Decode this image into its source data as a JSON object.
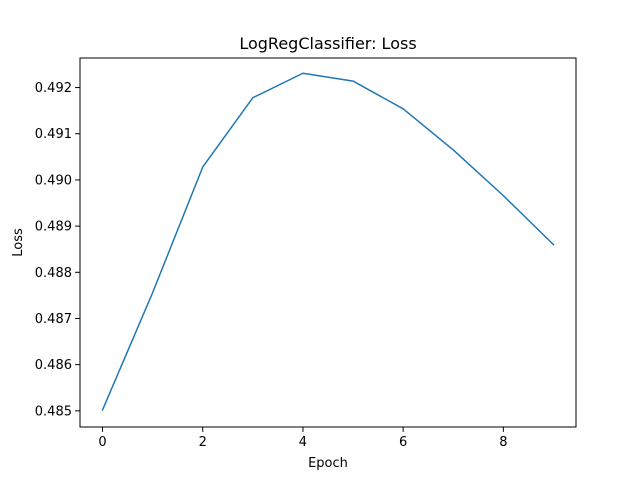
{
  "chart_data": {
    "type": "line",
    "title": "LogRegClassifier: Loss",
    "xlabel": "Epoch",
    "ylabel": "Loss",
    "x": [
      0,
      1,
      2,
      3,
      4,
      5,
      6,
      7,
      8,
      9
    ],
    "series": [
      {
        "values": [
          0.48502,
          0.48756,
          0.49028,
          0.49178,
          0.49231,
          0.49214,
          0.49154,
          0.49065,
          0.48966,
          0.4886
        ],
        "color": "#1f77b4"
      }
    ],
    "xlim": [
      -0.45,
      9.45
    ],
    "ylim": [
      0.48465,
      0.49264
    ],
    "xticks": [
      0,
      2,
      4,
      6,
      8
    ],
    "xtick_labels": [
      "0",
      "2",
      "4",
      "6",
      "8"
    ],
    "yticks": [
      0.485,
      0.486,
      0.487,
      0.488,
      0.489,
      0.49,
      0.491,
      0.492
    ],
    "ytick_labels": [
      "0.485",
      "0.486",
      "0.487",
      "0.488",
      "0.489",
      "0.490",
      "0.491",
      "0.492"
    ],
    "grid": false,
    "legend": false
  }
}
